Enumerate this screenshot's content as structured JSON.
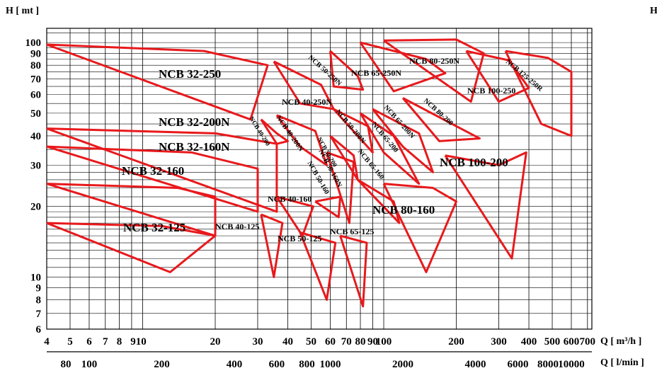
{
  "chart_data": {
    "type": "line",
    "title": "",
    "y_axis_label": "H [ mt ]",
    "corner_label": "H",
    "x_axis_label_primary": "Q [ m³/h ]",
    "x_axis_label_secondary": "Q [ l/min ]",
    "x_scale": "log",
    "y_scale": "log",
    "xlim": [
      4,
      730
    ],
    "ylim": [
      6,
      115
    ],
    "grid": true,
    "x_ticks_m3h": [
      "4",
      "5",
      "6",
      "7",
      "8",
      "910",
      "20",
      "30",
      "40",
      "50",
      "60",
      "70",
      "80",
      "90",
      "100",
      "200",
      "300",
      "400",
      "500",
      "600",
      "700"
    ],
    "x_tick_values_m3h": [
      4,
      5,
      6,
      7,
      8,
      9.6,
      20,
      30,
      40,
      50,
      60,
      70,
      80,
      90,
      100,
      200,
      300,
      400,
      500,
      600,
      700
    ],
    "x_ticks_lmin": [
      "80",
      "100",
      "200",
      "400",
      "600",
      "800",
      "1000",
      "2000",
      "4000",
      "6000",
      "8000",
      "10000"
    ],
    "x_tick_values_lmin": [
      80,
      100,
      200,
      400,
      600,
      800,
      1000,
      2000,
      4000,
      6000,
      8000,
      10000
    ],
    "y_ticks": [
      "6",
      "7",
      "8",
      "9",
      "10",
      "20",
      "30",
      "40",
      "50",
      "60",
      "70",
      "80",
      "90",
      "100"
    ],
    "y_tick_values": [
      6,
      7,
      8,
      9,
      10,
      20,
      30,
      40,
      50,
      60,
      70,
      80,
      90,
      100
    ],
    "curve_color": "#e8191c",
    "series": [
      {
        "name": "NCB 32-125",
        "points": [
          [
            4,
            17
          ],
          [
            12,
            16.5
          ],
          [
            20,
            15
          ],
          [
            13,
            10.5
          ],
          [
            4,
            17
          ]
        ]
      },
      {
        "name": "NCB 32-160",
        "points": [
          [
            4,
            25
          ],
          [
            14,
            24
          ],
          [
            20,
            22
          ],
          [
            20,
            15
          ],
          [
            4,
            25
          ]
        ]
      },
      {
        "name": "NCB 32-160N",
        "points": [
          [
            4,
            36
          ],
          [
            16,
            34
          ],
          [
            30,
            29
          ],
          [
            30,
            19
          ],
          [
            4,
            36
          ]
        ]
      },
      {
        "name": "NCB 32-200N",
        "points": [
          [
            4,
            43
          ],
          [
            20,
            41
          ],
          [
            36,
            37
          ],
          [
            36,
            19
          ],
          [
            4,
            43
          ]
        ]
      },
      {
        "name": "NCB 32-250",
        "points": [
          [
            4,
            98
          ],
          [
            18,
            92
          ],
          [
            33,
            80
          ],
          [
            28,
            47
          ],
          [
            4,
            98
          ]
        ]
      },
      {
        "name": "NCB 40-125",
        "points": [
          [
            31,
            18.5
          ],
          [
            38,
            17
          ],
          [
            35,
            10
          ],
          [
            31,
            18.5
          ]
        ]
      },
      {
        "name": "NCB 40-160",
        "points": [
          [
            36,
            22
          ],
          [
            51,
            20
          ],
          [
            46,
            15
          ],
          [
            36,
            22
          ]
        ]
      },
      {
        "name": "NCB 40-200",
        "points": [
          [
            31,
            47
          ],
          [
            36,
            41
          ],
          [
            40,
            38
          ],
          [
            36,
            37
          ],
          [
            31,
            47
          ]
        ]
      },
      {
        "name": "NCB 40-200N",
        "points": [
          [
            36,
            49
          ],
          [
            52,
            42
          ],
          [
            58,
            30
          ],
          [
            45,
            36
          ],
          [
            36,
            49
          ]
        ]
      },
      {
        "name": "NCB 40-250N",
        "points": [
          [
            35,
            83
          ],
          [
            55,
            66
          ],
          [
            62,
            52
          ],
          [
            45,
            55
          ],
          [
            35,
            83
          ]
        ]
      },
      {
        "name": "NCB 50-125",
        "points": [
          [
            45,
            15.5
          ],
          [
            63,
            14
          ],
          [
            58,
            8
          ],
          [
            45,
            15.5
          ]
        ]
      },
      {
        "name": "NCB 50-160",
        "points": [
          [
            52,
            21
          ],
          [
            66,
            22
          ],
          [
            65,
            18
          ],
          [
            52,
            21
          ]
        ]
      },
      {
        "name": "NCB 50-160N",
        "points": [
          [
            58,
            34
          ],
          [
            75,
            31
          ],
          [
            72,
            17
          ],
          [
            58,
            34
          ]
        ]
      },
      {
        "name": "NCB 50-200",
        "points": [
          [
            60,
            40
          ],
          [
            75,
            33
          ],
          [
            78,
            26
          ],
          [
            60,
            40
          ]
        ]
      },
      {
        "name": "NCB 50-200N",
        "points": [
          [
            62,
            52
          ],
          [
            86,
            44
          ],
          [
            90,
            34
          ],
          [
            62,
            52
          ]
        ]
      },
      {
        "name": "NCB 50-250N",
        "points": [
          [
            60,
            92
          ],
          [
            78,
            72
          ],
          [
            82,
            63
          ],
          [
            62,
            65
          ],
          [
            60,
            92
          ]
        ]
      },
      {
        "name": "NCB 65-125",
        "points": [
          [
            66,
            15
          ],
          [
            85,
            14
          ],
          [
            82,
            7.5
          ],
          [
            66,
            15
          ]
        ]
      },
      {
        "name": "NCB 65-160",
        "points": [
          [
            78,
            26
          ],
          [
            110,
            21
          ],
          [
            116,
            17
          ],
          [
            78,
            26
          ]
        ]
      },
      {
        "name": "NCB 65-200",
        "points": [
          [
            80,
            50
          ],
          [
            110,
            40
          ],
          [
            140,
            25
          ],
          [
            100,
            34
          ],
          [
            80,
            50
          ]
        ]
      },
      {
        "name": "NCB 65-200N",
        "points": [
          [
            90,
            52
          ],
          [
            140,
            41
          ],
          [
            160,
            28
          ],
          [
            120,
            36
          ],
          [
            90,
            52
          ]
        ]
      },
      {
        "name": "NCB 65-250N",
        "points": [
          [
            80,
            100
          ],
          [
            150,
            85
          ],
          [
            180,
            74
          ],
          [
            110,
            62
          ],
          [
            80,
            100
          ]
        ]
      },
      {
        "name": "NCB 80-160",
        "points": [
          [
            100,
            25
          ],
          [
            160,
            24
          ],
          [
            200,
            21
          ],
          [
            150,
            10.5
          ],
          [
            100,
            25
          ]
        ]
      },
      {
        "name": "NCB 80-200",
        "points": [
          [
            120,
            58
          ],
          [
            200,
            44
          ],
          [
            250,
            39
          ],
          [
            170,
            38
          ],
          [
            120,
            58
          ]
        ]
      },
      {
        "name": "NCB 80-250N",
        "points": [
          [
            100,
            102
          ],
          [
            200,
            103
          ],
          [
            260,
            90
          ],
          [
            230,
            56
          ],
          [
            100,
            102
          ]
        ]
      },
      {
        "name": "NCB 100-200",
        "points": [
          [
            180,
            33
          ],
          [
            300,
            30
          ],
          [
            390,
            34
          ],
          [
            340,
            12
          ],
          [
            180,
            33
          ]
        ]
      },
      {
        "name": "NCB 100-250",
        "points": [
          [
            220,
            92
          ],
          [
            330,
            84
          ],
          [
            400,
            64
          ],
          [
            300,
            56
          ],
          [
            220,
            92
          ]
        ]
      },
      {
        "name": "NCB 125-250R",
        "points": [
          [
            320,
            92
          ],
          [
            480,
            86
          ],
          [
            600,
            75
          ],
          [
            600,
            40
          ],
          [
            450,
            45
          ],
          [
            320,
            92
          ]
        ]
      }
    ],
    "labels": {
      "l32_250": "NCB 32-250",
      "l32_200n": "NCB 32-200N",
      "l32_160n": "NCB 32-160N",
      "l32_160": "NCB 32-160",
      "l32_125": "NCB 32-125",
      "l40_125": "NCB 40-125",
      "l40_160": "NCB 40-160",
      "l40_200": "NCB 40-200",
      "l40_200n": "NCB 40-200N",
      "l40_250n": "NCB 40-250N",
      "l50_125": "NCB 50-125",
      "l50_160": "NCB 50-160",
      "l50_160n": "NCB 50-160N",
      "l50_200": "NCB 50-200",
      "l50_200n": "NCB 50-200N",
      "l50_250n": "NCB 50-250N",
      "l65_125": "NCB 65-125",
      "l65_160": "NCB 65-160",
      "l65_200": "NCB 65-200",
      "l65_200n": "NCB 65-200N",
      "l65_250n": "NCB 65-250N",
      "l80_160": "NCB 80-160",
      "l80_200": "NCB 80-200",
      "l80_250n": "NCB 80-250N",
      "l100_200": "NCB 100-200",
      "l100_250": "NCB 100-250",
      "l125_250r": "NCB 125-250R"
    }
  }
}
